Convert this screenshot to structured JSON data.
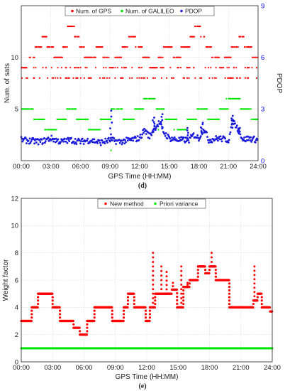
{
  "chart_data": [
    {
      "type": "scatter",
      "panel_label": "(d)",
      "xlabel": "GPS Time (HH:MM)",
      "ylabel": "Num. of sats",
      "y2label": "PDOP",
      "x_ticks": [
        "00:00",
        "03:00",
        "06:00",
        "09:00",
        "12:00",
        "15:00",
        "18:00",
        "21:00",
        "24:00"
      ],
      "xlim": [
        0,
        24
      ],
      "ylim": [
        0,
        15
      ],
      "y_ticks": [
        5,
        10
      ],
      "y2lim": [
        0,
        9
      ],
      "y2_ticks": [
        0,
        3,
        6,
        9
      ],
      "grid": true,
      "legend_placement": "top",
      "colors": {
        "gps": "#ff0000",
        "galileo": "#00e600",
        "pdop": "#1a1adb",
        "y2axis": "#0000ff"
      },
      "series": [
        {
          "name": "Num. of GPS",
          "axis": "left",
          "segments": [
            [
              0.0,
              0.6,
              9
            ],
            [
              0.6,
              1.4,
              10
            ],
            [
              1.4,
              2.1,
              11
            ],
            [
              2.1,
              2.6,
              12
            ],
            [
              2.6,
              3.3,
              11
            ],
            [
              3.3,
              4.2,
              10
            ],
            [
              4.2,
              4.7,
              11
            ],
            [
              4.7,
              5.4,
              13
            ],
            [
              5.4,
              5.9,
              12
            ],
            [
              5.9,
              6.4,
              11
            ],
            [
              6.4,
              7.6,
              10
            ],
            [
              7.6,
              8.3,
              11
            ],
            [
              8.3,
              8.9,
              10
            ],
            [
              8.9,
              9.4,
              9
            ],
            [
              9.4,
              10.2,
              10
            ],
            [
              10.2,
              10.8,
              11
            ],
            [
              10.8,
              11.6,
              12
            ],
            [
              11.6,
              12.3,
              11
            ],
            [
              12.3,
              13.0,
              10
            ],
            [
              13.0,
              13.8,
              9
            ],
            [
              13.8,
              14.4,
              10
            ],
            [
              14.4,
              15.4,
              11
            ],
            [
              15.4,
              16.2,
              10
            ],
            [
              16.2,
              17.1,
              11
            ],
            [
              17.1,
              17.6,
              12
            ],
            [
              17.6,
              18.2,
              13
            ],
            [
              18.2,
              18.7,
              12
            ],
            [
              18.7,
              19.3,
              11
            ],
            [
              19.3,
              20.1,
              10
            ],
            [
              20.1,
              20.6,
              9
            ],
            [
              20.6,
              21.3,
              10
            ],
            [
              21.3,
              22.0,
              11
            ],
            [
              22.0,
              22.6,
              12
            ],
            [
              22.6,
              23.4,
              11
            ],
            [
              23.4,
              24.0,
              10
            ]
          ],
          "extra_levels": [
            [
              0.0,
              24.0,
              8
            ],
            [
              0.0,
              24.0,
              9
            ]
          ]
        },
        {
          "name": "Num. of GALILEO",
          "axis": "left",
          "segments": [
            [
              0.0,
              1.3,
              5
            ],
            [
              1.3,
              2.4,
              4
            ],
            [
              2.4,
              3.6,
              3
            ],
            [
              3.6,
              4.6,
              4
            ],
            [
              4.6,
              5.6,
              5
            ],
            [
              5.6,
              6.8,
              4
            ],
            [
              6.8,
              8.0,
              3
            ],
            [
              8.0,
              9.1,
              4
            ],
            [
              9.1,
              10.3,
              5
            ],
            [
              10.3,
              11.5,
              4
            ],
            [
              11.5,
              12.4,
              5
            ],
            [
              12.4,
              13.6,
              6
            ],
            [
              13.6,
              14.6,
              5
            ],
            [
              14.6,
              15.8,
              4
            ],
            [
              15.8,
              16.8,
              3
            ],
            [
              16.8,
              17.8,
              4
            ],
            [
              17.8,
              18.9,
              5
            ],
            [
              18.9,
              20.1,
              4
            ],
            [
              20.1,
              21.0,
              5
            ],
            [
              21.0,
              22.2,
              6
            ],
            [
              22.2,
              23.3,
              5
            ],
            [
              23.3,
              24.0,
              4
            ]
          ],
          "outliers": [
            [
              9.1,
              1
            ],
            [
              13.9,
              3
            ],
            [
              20.8,
              6
            ],
            [
              15.5,
              3
            ]
          ]
        },
        {
          "name": "PDOP",
          "axis": "right",
          "curve": [
            [
              0.0,
              1.2
            ],
            [
              1.0,
              1.15
            ],
            [
              2.0,
              1.1
            ],
            [
              3.0,
              1.3
            ],
            [
              4.0,
              1.1
            ],
            [
              5.0,
              1.2
            ],
            [
              6.0,
              1.1
            ],
            [
              7.0,
              1.2
            ],
            [
              8.0,
              1.05
            ],
            [
              9.0,
              1.2
            ],
            [
              10.0,
              1.1
            ],
            [
              11.0,
              1.2
            ],
            [
              12.0,
              1.3
            ],
            [
              12.5,
              1.8
            ],
            [
              13.0,
              1.4
            ],
            [
              13.5,
              1.9
            ],
            [
              14.0,
              2.2
            ],
            [
              14.5,
              1.6
            ],
            [
              15.0,
              1.3
            ],
            [
              16.0,
              1.2
            ],
            [
              17.0,
              1.2
            ],
            [
              17.5,
              1.5
            ],
            [
              18.0,
              1.3
            ],
            [
              18.5,
              1.9
            ],
            [
              19.0,
              1.2
            ],
            [
              20.0,
              1.3
            ],
            [
              21.0,
              1.2
            ],
            [
              21.5,
              2.3
            ],
            [
              22.0,
              1.8
            ],
            [
              22.5,
              1.2
            ],
            [
              23.0,
              1.3
            ],
            [
              24.0,
              1.2
            ]
          ],
          "spikes": [
            [
              9.1,
              2.9
            ],
            [
              13.4,
              2.5
            ],
            [
              14.2,
              2.7
            ],
            [
              16.8,
              1.9
            ],
            [
              18.3,
              2.2
            ],
            [
              21.4,
              2.6
            ],
            [
              22.1,
              1.9
            ]
          ]
        }
      ]
    },
    {
      "type": "scatter",
      "panel_label": "(e)",
      "xlabel": "GPS Time (HH:MM)",
      "ylabel": "Weight factor",
      "x_ticks": [
        "00:00",
        "03:00",
        "06:00",
        "09:00",
        "12:00",
        "15:00",
        "18:00",
        "21:00",
        "24:00"
      ],
      "xlim": [
        0,
        24
      ],
      "ylim": [
        0,
        12
      ],
      "y_ticks": [
        0,
        2,
        4,
        6,
        8,
        10,
        12
      ],
      "grid": true,
      "legend_placement": "top",
      "colors": {
        "new": "#ff0000",
        "priori": "#00e600"
      },
      "series": [
        {
          "name": "New method",
          "steps": [
            [
              0.0,
              3
            ],
            [
              1.0,
              4
            ],
            [
              1.6,
              5
            ],
            [
              3.0,
              4
            ],
            [
              3.7,
              3
            ],
            [
              5.0,
              2.5
            ],
            [
              5.6,
              2
            ],
            [
              6.3,
              3
            ],
            [
              7.0,
              4
            ],
            [
              8.7,
              3
            ],
            [
              9.8,
              4
            ],
            [
              10.2,
              5
            ],
            [
              10.8,
              4
            ],
            [
              11.9,
              3
            ],
            [
              12.3,
              4
            ],
            [
              12.8,
              5
            ],
            [
              13.3,
              5
            ],
            [
              14.4,
              5.3
            ],
            [
              14.9,
              4
            ],
            [
              15.5,
              5.5
            ],
            [
              16.1,
              6
            ],
            [
              16.9,
              7
            ],
            [
              17.6,
              6.5
            ],
            [
              18.0,
              7
            ],
            [
              18.6,
              6
            ],
            [
              19.9,
              4
            ],
            [
              22.2,
              4.5
            ],
            [
              22.6,
              5
            ],
            [
              23.0,
              4
            ],
            [
              23.8,
              3.7
            ],
            [
              24.0,
              3.7
            ]
          ],
          "spikes": [
            [
              12.6,
              8.0
            ],
            [
              13.4,
              7.0
            ],
            [
              13.9,
              6.6
            ],
            [
              14.5,
              5.8
            ],
            [
              15.3,
              7.0
            ],
            [
              15.9,
              5.8
            ],
            [
              16.3,
              6.0
            ],
            [
              18.2,
              8.0
            ],
            [
              22.3,
              7.0
            ],
            [
              9.6,
              3.0
            ]
          ]
        },
        {
          "name": "Priori variance",
          "constant": 1
        }
      ]
    }
  ]
}
